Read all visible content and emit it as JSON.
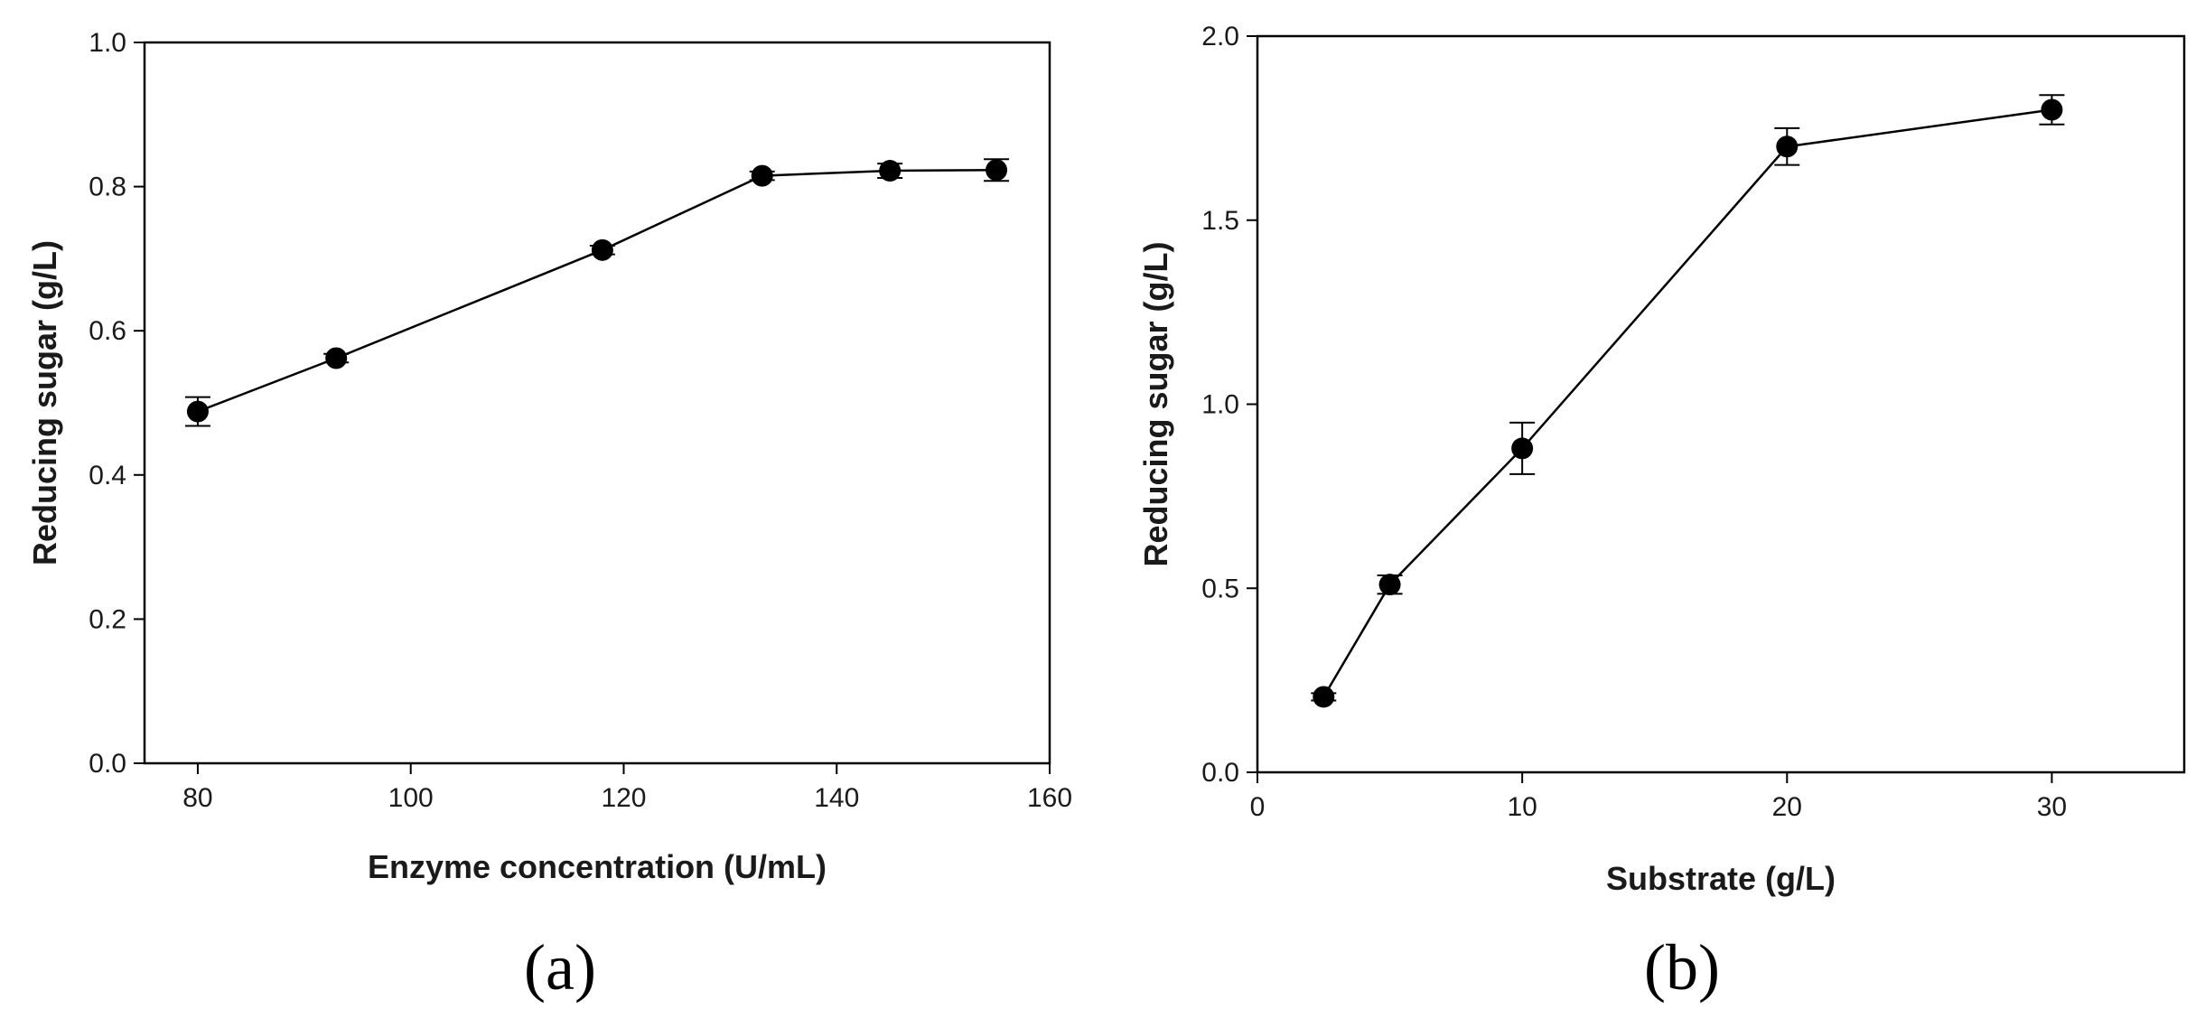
{
  "chart_data": [
    {
      "type": "line",
      "panel_label": "(a)",
      "title": "",
      "xlabel": "Enzyme concentration (U/mL)",
      "ylabel": "Reducing sugar (g/L)",
      "xlim": [
        75,
        160
      ],
      "ylim": [
        0.0,
        1.0
      ],
      "xticks": [
        80,
        100,
        120,
        140,
        160
      ],
      "yticks": [
        0.0,
        0.2,
        0.4,
        0.6,
        0.8,
        1.0
      ],
      "xtick_labels": [
        "80",
        "100",
        "120",
        "140",
        "160"
      ],
      "ytick_labels": [
        "0.0",
        "0.2",
        "0.4",
        "0.6",
        "0.8",
        "1.0"
      ],
      "grid": false,
      "legend": "none",
      "series": [
        {
          "name": "Reducing sugar",
          "x": [
            80,
            93,
            118,
            133,
            145,
            155
          ],
          "y": [
            0.488,
            0.562,
            0.712,
            0.815,
            0.822,
            0.823
          ],
          "error": [
            0.02,
            0.006,
            0.006,
            0.006,
            0.01,
            0.015
          ]
        }
      ]
    },
    {
      "type": "line",
      "panel_label": "(b)",
      "title": "",
      "xlabel": "Substrate (g/L)",
      "ylabel": "Reducing sugar (g/L)",
      "xlim": [
        0,
        35
      ],
      "ylim": [
        0.0,
        2.0
      ],
      "xticks": [
        0,
        10,
        20,
        30
      ],
      "yticks": [
        0.0,
        0.5,
        1.0,
        1.5,
        2.0
      ],
      "xtick_labels": [
        "0",
        "10",
        "20",
        "30"
      ],
      "ytick_labels": [
        "0.0",
        "0.5",
        "1.0",
        "1.5",
        "2.0"
      ],
      "grid": false,
      "legend": "none",
      "series": [
        {
          "name": "Reducing sugar",
          "x": [
            2.5,
            5,
            10,
            20,
            30
          ],
          "y": [
            0.205,
            0.51,
            0.88,
            1.7,
            1.8
          ],
          "error": [
            0.01,
            0.025,
            0.07,
            0.05,
            0.04
          ]
        }
      ]
    }
  ]
}
